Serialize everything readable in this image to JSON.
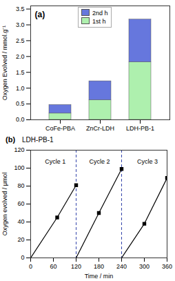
{
  "chart_data": [
    {
      "type": "bar",
      "stacked": true,
      "panel_label": "(a)",
      "categories": [
        "CoFe-PBA",
        "ZnCr-LDH",
        "LDH-PB-1"
      ],
      "series": [
        {
          "name": "1st h",
          "color": "#aef0ae",
          "values": [
            0.2,
            0.62,
            1.82
          ]
        },
        {
          "name": "2nd h",
          "color": "#6677dd",
          "values": [
            0.27,
            0.6,
            1.35
          ]
        }
      ],
      "ylabel": "Oxygen Evolved / mmol.g⁻¹",
      "ylim": [
        0,
        3.6
      ],
      "yticks": [
        {
          "value": 0,
          "label": "0.0"
        },
        0.5,
        {
          "value": 1,
          "label": "1.0"
        },
        1.5,
        {
          "value": 2,
          "label": "2.0"
        },
        2.5,
        {
          "value": 3,
          "label": "3.0"
        },
        3.5
      ],
      "legend": "upper left",
      "grid": false
    },
    {
      "type": "line",
      "panel_label": "(b)",
      "title": "LDH-PB-1",
      "xlabel": "Time / min",
      "ylabel": "Oxygen evolved / μmol",
      "series": [
        {
          "color": "#000000",
          "marker": "square",
          "x": [
            0,
            70,
            120
          ],
          "values": [
            0,
            45,
            81
          ]
        },
        {
          "color": "#000000",
          "marker": "square",
          "x": [
            120,
            180,
            240
          ],
          "values": [
            0,
            50,
            99
          ]
        },
        {
          "color": "#000000",
          "marker": "square",
          "x": [
            240,
            300,
            360
          ],
          "values": [
            0,
            38,
            89
          ]
        }
      ],
      "vlines": [
        {
          "x": 120,
          "color": "#3344aa",
          "line_style": "dashed"
        },
        {
          "x": 240,
          "color": "#3344aa",
          "line_style": "dashed"
        }
      ],
      "annotations": [
        {
          "text": "Cycle 1",
          "x": 65,
          "y": 110
        },
        {
          "text": "Cycle 2",
          "x": 182,
          "y": 110
        },
        {
          "text": "Cycle 3",
          "x": 308,
          "y": 110
        }
      ],
      "xlim": [
        0,
        360
      ],
      "xticks": [
        0,
        60,
        120,
        180,
        240,
        300,
        360
      ],
      "ylim": [
        0,
        120
      ],
      "yticks": [
        0,
        20,
        40,
        60,
        80,
        100,
        120
      ],
      "grid": false
    }
  ]
}
